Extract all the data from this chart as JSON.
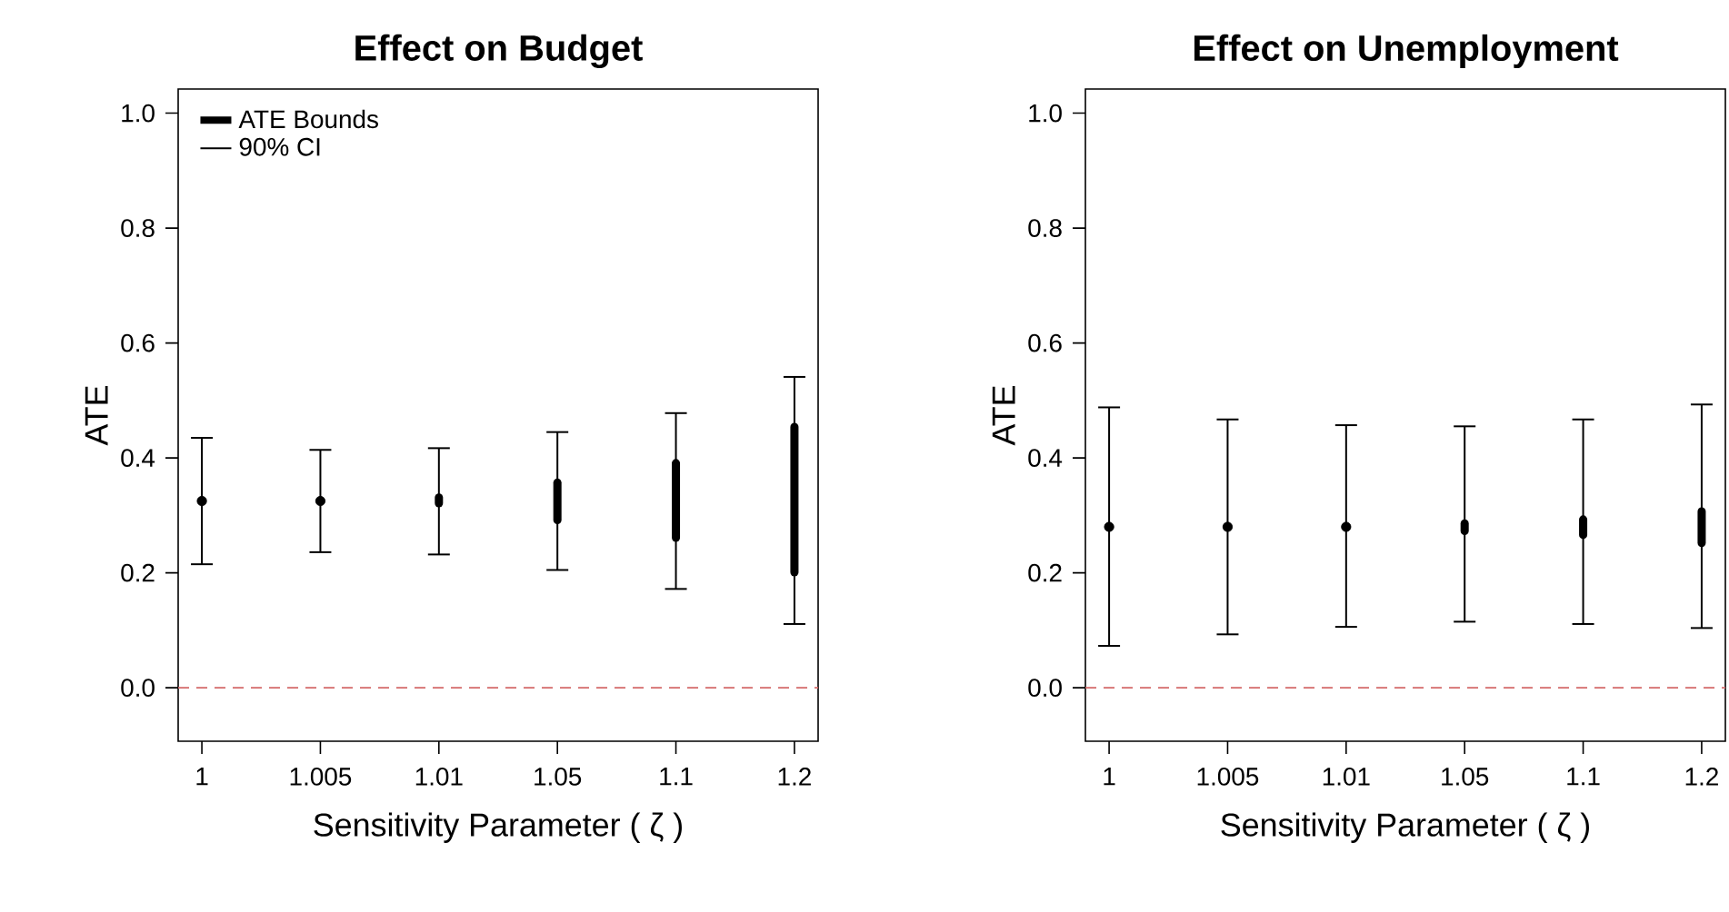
{
  "chart_data": [
    {
      "type": "bar",
      "title": "Effect on Budget",
      "xlabel": "Sensitivity Parameter ( ζ )",
      "ylabel": "ATE",
      "categories": [
        "1",
        "1.005",
        "1.01",
        "1.05",
        "1.1",
        "1.2"
      ],
      "ylim": [
        -0.093,
        1.042
      ],
      "yticks": [
        {
          "value": 0,
          "label": "0.0"
        },
        {
          "value": 0.2,
          "label": "0.2"
        },
        {
          "value": 0.4,
          "label": "0.4"
        },
        {
          "value": 0.6,
          "label": "0.6"
        },
        {
          "value": 0.8,
          "label": "0.8"
        },
        {
          "value": 1,
          "label": "1.0"
        }
      ],
      "legend": "top left",
      "annotations": [
        "90% CI"
      ],
      "ref_lines": [
        {
          "axis": "y",
          "value": 0,
          "color": "#d46a6a",
          "line_style": "dashed"
        }
      ],
      "series": [
        {
          "name": "ATE Bounds",
          "color": "#000000",
          "base": [
            null,
            null,
            0.321,
            0.292,
            0.261,
            0.201
          ],
          "values": [
            null,
            null,
            0.01,
            0.065,
            0.13,
            0.253
          ],
          "errors": [
            null,
            null,
            [
              0.232,
              0.417
            ],
            [
              0.205,
              0.445
            ],
            [
              0.172,
              0.478
            ],
            [
              0.111,
              0.541
            ]
          ]
        },
        {
          "type": "scatter",
          "color": "#000000",
          "values": [
            0.325,
            0.325,
            null,
            null,
            null,
            null
          ],
          "errors": [
            [
              0.215,
              0.435
            ],
            [
              0.236,
              0.414
            ],
            null,
            null,
            null,
            null
          ]
        }
      ]
    },
    {
      "type": "bar",
      "title": "Effect on Unemployment",
      "xlabel": "Sensitivity Parameter ( ζ )",
      "ylabel": "ATE",
      "categories": [
        "1",
        "1.005",
        "1.01",
        "1.05",
        "1.1",
        "1.2"
      ],
      "ylim": [
        -0.093,
        1.042
      ],
      "yticks": [
        {
          "value": 0,
          "label": "0.0"
        },
        {
          "value": 0.2,
          "label": "0.2"
        },
        {
          "value": 0.4,
          "label": "0.4"
        },
        {
          "value": 0.6,
          "label": "0.6"
        },
        {
          "value": 0.8,
          "label": "0.8"
        },
        {
          "value": 1,
          "label": "1.0"
        }
      ],
      "ref_lines": [
        {
          "axis": "y",
          "value": 0,
          "color": "#d46a6a",
          "line_style": "dashed"
        }
      ],
      "series": [
        {
          "color": "#000000",
          "base": [
            null,
            null,
            null,
            0.273,
            0.266,
            0.252
          ],
          "values": [
            null,
            null,
            null,
            0.013,
            0.027,
            0.055
          ],
          "errors": [
            null,
            null,
            null,
            [
              0.115,
              0.455
            ],
            [
              0.111,
              0.467
            ],
            [
              0.104,
              0.493
            ]
          ]
        },
        {
          "type": "scatter",
          "color": "#000000",
          "values": [
            0.28,
            0.28,
            0.28,
            null,
            null,
            null
          ],
          "errors": [
            [
              0.073,
              0.488
            ],
            [
              0.093,
              0.467
            ],
            [
              0.106,
              0.457
            ],
            null,
            null,
            null
          ]
        }
      ]
    }
  ]
}
